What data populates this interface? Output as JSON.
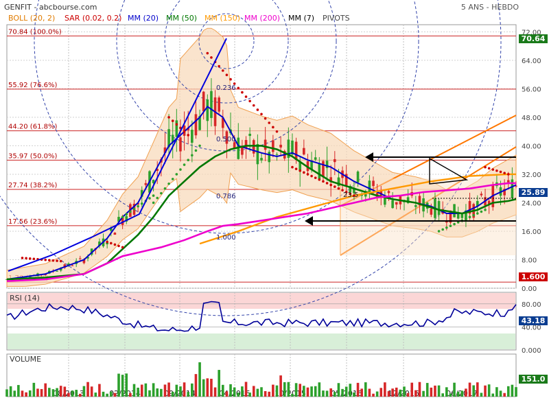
{
  "header": {
    "title": "GENFIT - abcbourse.com",
    "period": "5 ANS - HEBDO"
  },
  "indicators": [
    {
      "label": "BOLL (20, 2)",
      "color": "#e07b00"
    },
    {
      "label": "SAR (0.02, 0.2)",
      "color": "#cc0000"
    },
    {
      "label": "MM (20)",
      "color": "#0000cc"
    },
    {
      "label": "MM (50)",
      "color": "#007700"
    },
    {
      "label": "MM (150)",
      "color": "#ff9900"
    },
    {
      "label": "MM (200)",
      "color": "#ee00cc"
    },
    {
      "label": "MM (7)",
      "color": "#000000"
    },
    {
      "label": "PIVOTS",
      "color": "#444444"
    }
  ],
  "tags": {
    "last": "70.64",
    "current": "25.89",
    "low": "1.600",
    "rsi": "43.18",
    "volume": "151.0"
  },
  "fib_labels": {
    "f0": "70.84  (100.0%)",
    "f1": "55.92  (76.6%)",
    "f2": "44.20  (61.8%)",
    "f3": "35.97  (50.0%)",
    "f4": "27.74  (38.2%)",
    "f5": "17.56  (23.6%)",
    "f6": "1.70  (0.0%)"
  },
  "fan_labels": {
    "a": "0.236",
    "b": "0.500",
    "c": "0.786",
    "d": "1.000",
    "e": "23.5"
  },
  "panels": {
    "rsi": "RSI (14)",
    "volume": "VOLUME"
  },
  "chart_data": {
    "type": "line",
    "title": "GENFIT - abcbourse.com",
    "subtitle": "5 ANS - HEBDO",
    "x": [
      "08/2013",
      "02/2014",
      "09/2014",
      "04/2015",
      "10/2015",
      "05/2016",
      "12/2016",
      "06/2017"
    ],
    "price_ticks": [
      "72.00",
      "64.00",
      "56.00",
      "48.00",
      "40.00",
      "32.00",
      "24.00",
      "16.00",
      "8.00",
      "0.00"
    ],
    "ylim": [
      0,
      74
    ],
    "rsi_ticks": [
      "80.00",
      "40.00",
      "0.000"
    ],
    "rsi_ylim": [
      0,
      100
    ],
    "fibonacci_levels": [
      70.84,
      55.92,
      44.2,
      35.97,
      27.74,
      17.56,
      1.7
    ],
    "last_price": 25.89,
    "series": [
      {
        "name": "MM (20)",
        "color": "#0000cc",
        "points": [
          [
            0,
            2.5
          ],
          [
            10,
            4
          ],
          [
            20,
            8
          ],
          [
            26,
            14
          ],
          [
            30,
            20
          ],
          [
            34,
            24
          ],
          [
            38,
            32
          ],
          [
            42,
            40
          ],
          [
            46,
            44
          ],
          [
            50,
            48
          ],
          [
            52,
            51
          ],
          [
            56,
            48
          ],
          [
            60,
            40
          ],
          [
            66,
            38
          ],
          [
            70,
            37
          ],
          [
            74,
            38
          ],
          [
            78,
            36
          ],
          [
            84,
            34
          ],
          [
            90,
            30
          ],
          [
            96,
            27
          ],
          [
            100,
            25
          ],
          [
            106,
            24
          ],
          [
            110,
            23
          ],
          [
            114,
            21
          ],
          [
            118,
            21
          ],
          [
            122,
            23
          ],
          [
            126,
            26
          ],
          [
            130,
            28
          ],
          [
            132,
            29
          ]
        ]
      },
      {
        "name": "MM (50)",
        "color": "#007700",
        "points": [
          [
            0,
            2.5
          ],
          [
            10,
            3
          ],
          [
            20,
            4
          ],
          [
            26,
            7
          ],
          [
            30,
            11
          ],
          [
            34,
            15
          ],
          [
            38,
            20
          ],
          [
            42,
            26
          ],
          [
            46,
            30
          ],
          [
            50,
            34
          ],
          [
            54,
            37
          ],
          [
            58,
            39
          ],
          [
            62,
            40
          ],
          [
            66,
            40
          ],
          [
            70,
            39
          ],
          [
            74,
            37
          ],
          [
            78,
            34
          ],
          [
            84,
            30
          ],
          [
            90,
            28
          ],
          [
            96,
            26
          ],
          [
            100,
            25
          ],
          [
            106,
            24
          ],
          [
            112,
            22
          ],
          [
            118,
            21
          ],
          [
            122,
            22
          ],
          [
            126,
            24
          ],
          [
            130,
            24.5
          ],
          [
            132,
            25
          ]
        ]
      },
      {
        "name": "MM (150)",
        "color": "#ff9900",
        "points": [
          [
            50,
            12.5
          ],
          [
            60,
            16
          ],
          [
            70,
            20
          ],
          [
            80,
            23
          ],
          [
            90,
            26
          ],
          [
            100,
            28
          ],
          [
            110,
            30
          ],
          [
            120,
            31.5
          ],
          [
            130,
            32
          ],
          [
            132,
            32
          ]
        ]
      },
      {
        "name": "MM (200)",
        "color": "#ee00cc",
        "points": [
          [
            0,
            2
          ],
          [
            10,
            2.5
          ],
          [
            20,
            4
          ],
          [
            26,
            7
          ],
          [
            30,
            9
          ],
          [
            36,
            10.5
          ],
          [
            40,
            11.5
          ],
          [
            46,
            13.5
          ],
          [
            52,
            16
          ],
          [
            56,
            17.5
          ],
          [
            60,
            18
          ],
          [
            66,
            19
          ],
          [
            72,
            20
          ],
          [
            78,
            21
          ],
          [
            84,
            22.5
          ],
          [
            90,
            24
          ],
          [
            96,
            25.5
          ],
          [
            102,
            26
          ],
          [
            108,
            27
          ],
          [
            114,
            27.5
          ],
          [
            120,
            28
          ],
          [
            126,
            29
          ],
          [
            130,
            29.5
          ],
          [
            132,
            29.5
          ]
        ]
      },
      {
        "name": "RSI (14)",
        "color": "#000099"
      }
    ]
  }
}
